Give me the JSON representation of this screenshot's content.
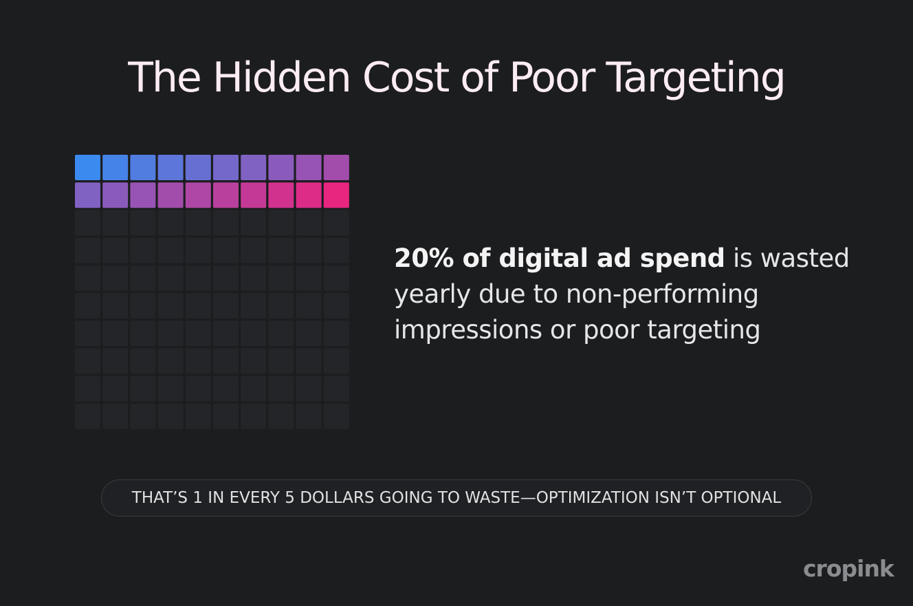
{
  "chart_data": {
    "type": "waffle",
    "title": "The Hidden Cost of Poor Targeting",
    "value": 20,
    "colors": [
      "#3a8af0",
      "#e8257f"
    ],
    "empty_color": "#232528"
  },
  "statement": {
    "bold": "20% of digital ad spend",
    "rest": "is wasted yearly due to non-performing impressions or poor targeting"
  },
  "callout": "THAT’S 1 IN EVERY 5 DOLLARS GOING TO WASTE—OPTIMIZATION ISN’T OPTIONAL",
  "logo": "cropink"
}
